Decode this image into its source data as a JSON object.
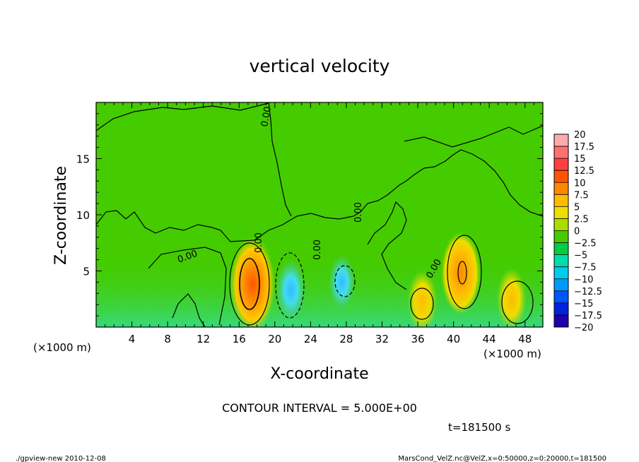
{
  "chart_data": {
    "type": "heatmap",
    "title": "vertical velocity",
    "xlabel": "X-coordinate",
    "ylabel": "Z-coordinate",
    "x_unit_left": "(×1000 m)",
    "x_unit_right": "(×1000 m)",
    "xlim": [
      0,
      50
    ],
    "ylim": [
      0,
      20
    ],
    "x_ticks": [
      4,
      8,
      12,
      16,
      20,
      24,
      28,
      32,
      36,
      40,
      44,
      48
    ],
    "y_ticks": [
      5,
      10,
      15
    ],
    "colorbar_labels": [
      "20",
      "17.5",
      "15",
      "12.5",
      "10",
      "7.5",
      "5",
      "2.5",
      "0",
      "−2.5",
      "−5",
      "−7.5",
      "−10",
      "−12.5",
      "−15",
      "−17.5",
      "−20"
    ],
    "colorbar_colors": [
      "#ffaaaa",
      "#ff7070",
      "#ff4040",
      "#ff5500",
      "#ff8800",
      "#ffbb00",
      "#eedd00",
      "#aadd00",
      "#44cc00",
      "#00cc44",
      "#00ddaa",
      "#00ccee",
      "#0099ff",
      "#0055ff",
      "#0022dd",
      "#2200aa",
      "#6600aa"
    ],
    "contour_interval": "CONTOUR INTERVAL = 5.000E+00",
    "time_label": "t=181500 s",
    "contour_labels": [
      "0.00",
      "0.00",
      "0.00",
      "0.00",
      "0.00",
      "0.00"
    ],
    "features": [
      {
        "x": 17.5,
        "z": 3.8,
        "w": 10,
        "kind": "updraft"
      },
      {
        "x": 40.8,
        "z": 4.8,
        "w": 8,
        "kind": "updraft"
      },
      {
        "x": 46.5,
        "z": 2.5,
        "w": 5,
        "kind": "updraft"
      },
      {
        "x": 36.5,
        "z": 2.3,
        "w": 5,
        "kind": "updraft"
      },
      {
        "x": 21.8,
        "z": 3.3,
        "w": -5,
        "kind": "downdraft"
      },
      {
        "x": 27.5,
        "z": 4.0,
        "w": -4,
        "kind": "downdraft"
      }
    ]
  },
  "footer": {
    "left": "./gpview-new  2010-12-08",
    "right": "MarsCond_VelZ.nc@VelZ,x=0:50000,z=0:20000,t=181500"
  }
}
